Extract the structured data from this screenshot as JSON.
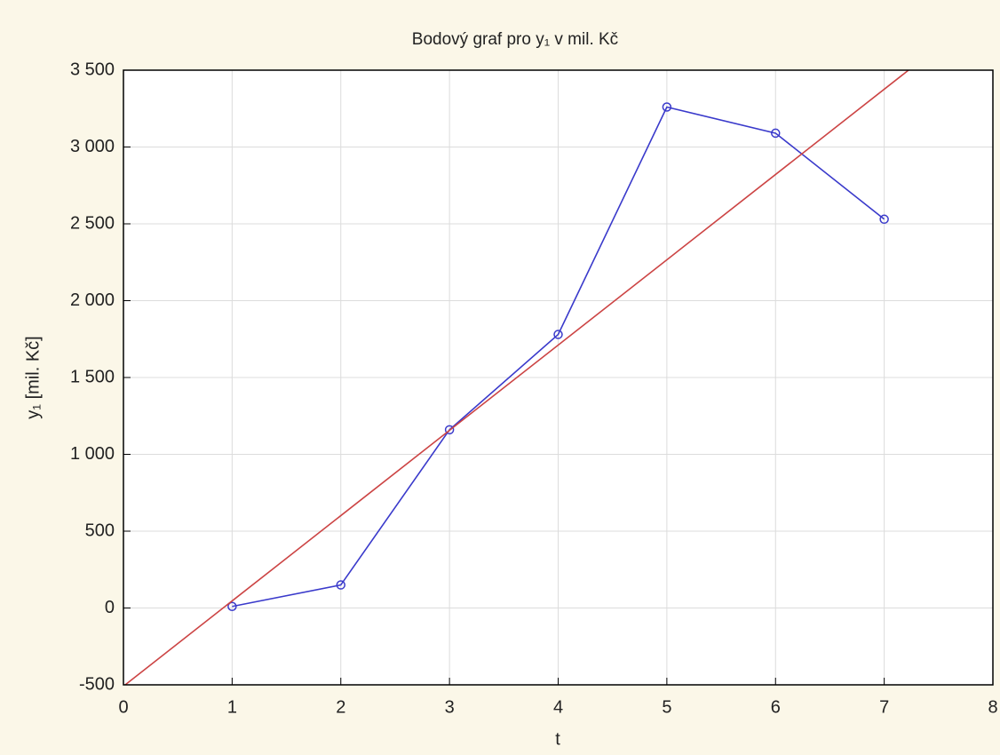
{
  "chart_data": {
    "type": "line",
    "title": "Bodový graf pro y₁ v mil. Kč",
    "x_label": "t",
    "y_label": "y₁ [mil. Kč]",
    "xlim": [
      0,
      8
    ],
    "xticks": [
      0,
      1,
      2,
      3,
      4,
      5,
      6,
      7,
      8
    ],
    "ylim": [
      -500,
      3500
    ],
    "yticks": [
      {
        "value": -500,
        "label": "-500"
      },
      0,
      500,
      {
        "value": 1000,
        "label": "1 000"
      },
      {
        "value": 1500,
        "label": "1 500"
      },
      {
        "value": 2000,
        "label": "2 000"
      },
      {
        "value": 2500,
        "label": "2 500"
      },
      {
        "value": 3000,
        "label": "3 000"
      },
      {
        "value": 3500,
        "label": "3 500"
      }
    ],
    "grid": true,
    "series": [
      {
        "color": "#3a3acb",
        "markers": true,
        "x": [
          1,
          2,
          3,
          4,
          5,
          6,
          7
        ],
        "values": [
          10,
          150,
          1160,
          1780,
          3260,
          3090,
          2530
        ]
      },
      {
        "color": "#cc4444",
        "markers": false,
        "x": [
          0,
          8
        ],
        "values": [
          -509,
          3931
        ]
      }
    ]
  }
}
